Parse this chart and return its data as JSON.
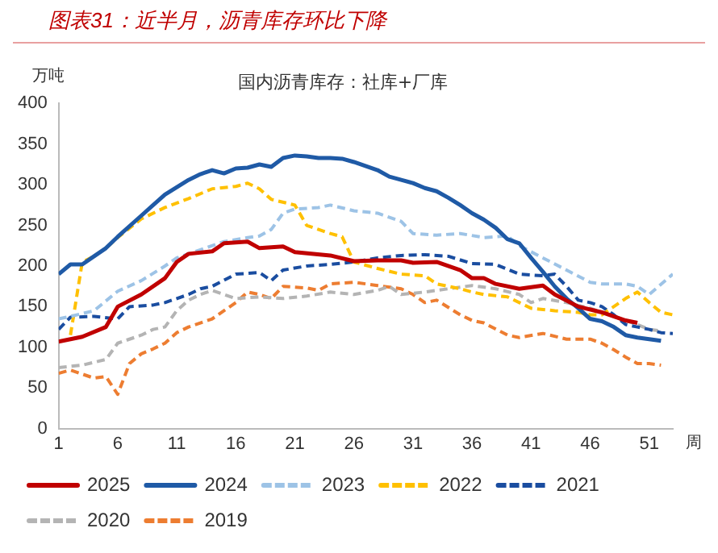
{
  "chart_data": {
    "type": "line",
    "title": "图表31：近半月，沥青库存环比下降",
    "subtitle": "国内沥青库存：社库+厂库",
    "ylabel": "万吨",
    "xlabel": "周",
    "xlim": [
      1,
      53
    ],
    "xticks": [
      1,
      6,
      11,
      16,
      21,
      26,
      31,
      36,
      41,
      46,
      51
    ],
    "ylim": [
      0,
      400
    ],
    "yticks": [
      0,
      50,
      100,
      150,
      200,
      250,
      300,
      350,
      400
    ],
    "grid": false,
    "legend": "bottom",
    "marker": "none",
    "series": [
      {
        "name": "2025",
        "color": "#c00000",
        "line_style": "solid",
        "x": [
          1,
          3,
          5,
          6,
          8,
          10,
          11,
          12,
          14,
          15,
          17,
          18,
          20,
          21,
          24,
          26,
          28,
          30,
          31,
          33,
          35,
          36,
          37,
          38,
          40,
          42,
          43,
          45,
          47,
          49,
          50
        ],
        "values": [
          107,
          113,
          125,
          150,
          165,
          185,
          205,
          215,
          218,
          228,
          230,
          222,
          224,
          217,
          213,
          206,
          207,
          207,
          204,
          205,
          195,
          185,
          185,
          178,
          172,
          176,
          165,
          150,
          143,
          133,
          130
        ]
      },
      {
        "name": "2024",
        "color": "#1f5aa6",
        "line_style": "solid",
        "x": [
          1,
          2,
          3,
          4,
          5,
          6,
          8,
          10,
          12,
          13,
          14,
          15,
          16,
          17,
          18,
          19,
          20,
          21,
          22,
          23,
          24,
          25,
          26,
          28,
          29,
          30,
          31,
          32,
          33,
          34,
          35,
          36,
          37,
          38,
          39,
          40,
          41,
          42,
          43,
          44,
          45,
          46,
          47,
          48,
          49,
          50,
          51,
          52
        ],
        "values": [
          190,
          202,
          202,
          212,
          222,
          236,
          262,
          288,
          306,
          313,
          318,
          314,
          320,
          321,
          325,
          322,
          333,
          336,
          335,
          333,
          333,
          332,
          328,
          318,
          310,
          306,
          302,
          296,
          292,
          284,
          275,
          265,
          257,
          247,
          233,
          228,
          210,
          193,
          175,
          160,
          148,
          135,
          132,
          125,
          115,
          112,
          110,
          108
        ]
      },
      {
        "name": "2023",
        "color": "#9dc3e6",
        "line_style": "dashed",
        "x": [
          1,
          2,
          4,
          6,
          8,
          10,
          11,
          13,
          15,
          17,
          18,
          19,
          20,
          21,
          23,
          24,
          26,
          28,
          30,
          31,
          33,
          35,
          37,
          39,
          40,
          42,
          44,
          46,
          47,
          49,
          50,
          51,
          53
        ],
        "values": [
          135,
          138,
          145,
          169,
          182,
          200,
          210,
          220,
          230,
          235,
          237,
          245,
          265,
          270,
          272,
          275,
          268,
          265,
          255,
          240,
          238,
          240,
          235,
          237,
          225,
          210,
          195,
          180,
          178,
          178,
          175,
          165,
          190
        ]
      },
      {
        "name": "2022",
        "color": "#ffc000",
        "line_style": "dashed",
        "x": [
          2,
          3,
          4,
          5,
          6,
          8,
          10,
          12,
          14,
          16,
          17,
          18,
          19,
          21,
          22,
          23,
          24,
          25,
          26,
          28,
          30,
          32,
          33,
          35,
          36,
          37,
          39,
          41,
          43,
          45,
          46,
          47,
          48,
          49,
          50,
          51,
          52,
          53
        ],
        "values": [
          115,
          205,
          212,
          222,
          235,
          258,
          272,
          283,
          295,
          298,
          302,
          295,
          282,
          275,
          250,
          245,
          240,
          236,
          205,
          197,
          190,
          188,
          178,
          172,
          168,
          165,
          162,
          148,
          145,
          143,
          140,
          140,
          150,
          160,
          168,
          155,
          143,
          140
        ]
      },
      {
        "name": "2021",
        "color": "#1a4da0",
        "line_style": "dashed",
        "x": [
          1,
          2,
          4,
          6,
          7,
          9,
          10,
          12,
          13,
          14,
          16,
          18,
          19,
          20,
          22,
          24,
          26,
          28,
          30,
          32,
          34,
          36,
          38,
          40,
          42,
          43,
          44,
          45,
          46,
          47,
          48,
          49,
          50,
          51,
          52,
          53
        ],
        "values": [
          122,
          137,
          138,
          135,
          150,
          152,
          155,
          165,
          172,
          175,
          190,
          192,
          182,
          195,
          200,
          202,
          205,
          210,
          213,
          214,
          212,
          203,
          202,
          190,
          188,
          190,
          175,
          158,
          155,
          150,
          140,
          128,
          125,
          122,
          118,
          117
        ]
      },
      {
        "name": "2020",
        "color": "#b4b4b4",
        "line_style": "dashed",
        "x": [
          1,
          3,
          5,
          6,
          8,
          9,
          10,
          11,
          12,
          13,
          14,
          15,
          16,
          18,
          20,
          22,
          24,
          26,
          28,
          29,
          30,
          32,
          34,
          36,
          38,
          40,
          41,
          42,
          44,
          46,
          48,
          50,
          51,
          52
        ],
        "values": [
          75,
          78,
          85,
          105,
          115,
          122,
          125,
          145,
          158,
          165,
          170,
          165,
          160,
          162,
          160,
          163,
          168,
          165,
          170,
          175,
          165,
          168,
          172,
          176,
          172,
          165,
          155,
          160,
          155,
          148,
          138,
          128,
          122,
          120
        ]
      },
      {
        "name": "2019",
        "color": "#ed7d31",
        "line_style": "dashed",
        "x": [
          1,
          2,
          4,
          5,
          6,
          7,
          8,
          9,
          10,
          11,
          12,
          13,
          14,
          15,
          16,
          17,
          18,
          19,
          20,
          22,
          23,
          24,
          26,
          28,
          30,
          31,
          32,
          33,
          35,
          36,
          37,
          39,
          40,
          42,
          44,
          46,
          47,
          48,
          49,
          50,
          51,
          52
        ],
        "values": [
          68,
          72,
          62,
          64,
          42,
          80,
          92,
          98,
          105,
          118,
          125,
          130,
          135,
          145,
          155,
          168,
          165,
          160,
          175,
          173,
          170,
          178,
          180,
          176,
          172,
          165,
          155,
          158,
          140,
          133,
          130,
          115,
          112,
          117,
          110,
          110,
          105,
          97,
          88,
          80,
          80,
          78
        ]
      }
    ]
  }
}
